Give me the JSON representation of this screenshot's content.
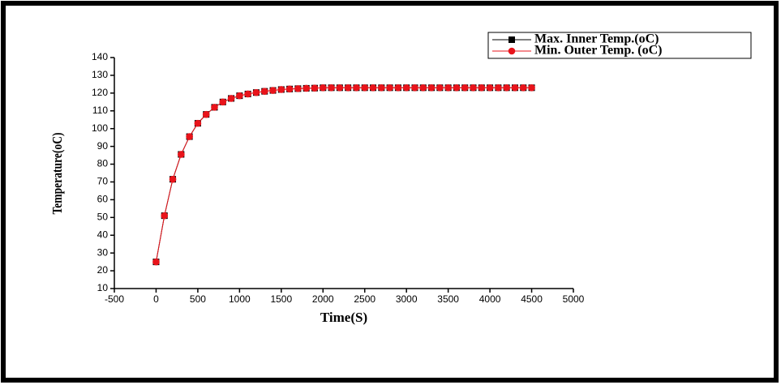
{
  "chart_data": {
    "type": "line",
    "xlabel": "Time(S)",
    "ylabel": "Temperature(oC)",
    "x": [
      0,
      100,
      200,
      300,
      400,
      500,
      600,
      700,
      800,
      900,
      1000,
      1100,
      1200,
      1300,
      1400,
      1500,
      1600,
      1700,
      1800,
      1900,
      2000,
      2100,
      2200,
      2300,
      2400,
      2500,
      2600,
      2700,
      2800,
      2900,
      3000,
      3100,
      3200,
      3300,
      3400,
      3500,
      3600,
      3700,
      3800,
      3900,
      4000,
      4100,
      4200,
      4300,
      4400,
      4500
    ],
    "series": [
      {
        "name": "Max. Inner Temp.(oC)",
        "color": "#000000",
        "marker": "square",
        "values": [
          25,
          51,
          71.5,
          85.5,
          95.5,
          103,
          108,
          112,
          115,
          117,
          118.5,
          119.5,
          120.3,
          121,
          121.5,
          122,
          122.3,
          122.5,
          122.7,
          122.8,
          123,
          123,
          123,
          123,
          123,
          123,
          123,
          123,
          123,
          123,
          123,
          123,
          123,
          123,
          123,
          123,
          123,
          123,
          123,
          123,
          123,
          123,
          123,
          123,
          123,
          123
        ]
      },
      {
        "name": "Min. Outer Temp. (oC)",
        "color": "#e8141b",
        "marker": "circle",
        "values": [
          25,
          51,
          71.5,
          85.5,
          95.5,
          103,
          108,
          112,
          115,
          117,
          118.5,
          119.5,
          120.3,
          121,
          121.5,
          122,
          122.3,
          122.5,
          122.7,
          122.8,
          123,
          123,
          123,
          123,
          123,
          123,
          123,
          123,
          123,
          123,
          123,
          123,
          123,
          123,
          123,
          123,
          123,
          123,
          123,
          123,
          123,
          123,
          123,
          123,
          123,
          123
        ]
      }
    ],
    "xlim": [
      -500,
      5000
    ],
    "xticks": [
      -500,
      0,
      500,
      1000,
      1500,
      2000,
      2500,
      3000,
      3500,
      4000,
      4500,
      5000
    ],
    "ylim": [
      10,
      140
    ],
    "yticks": [
      10,
      20,
      30,
      40,
      50,
      60,
      70,
      80,
      90,
      100,
      110,
      120,
      130,
      140
    ],
    "legend": "upper right"
  }
}
